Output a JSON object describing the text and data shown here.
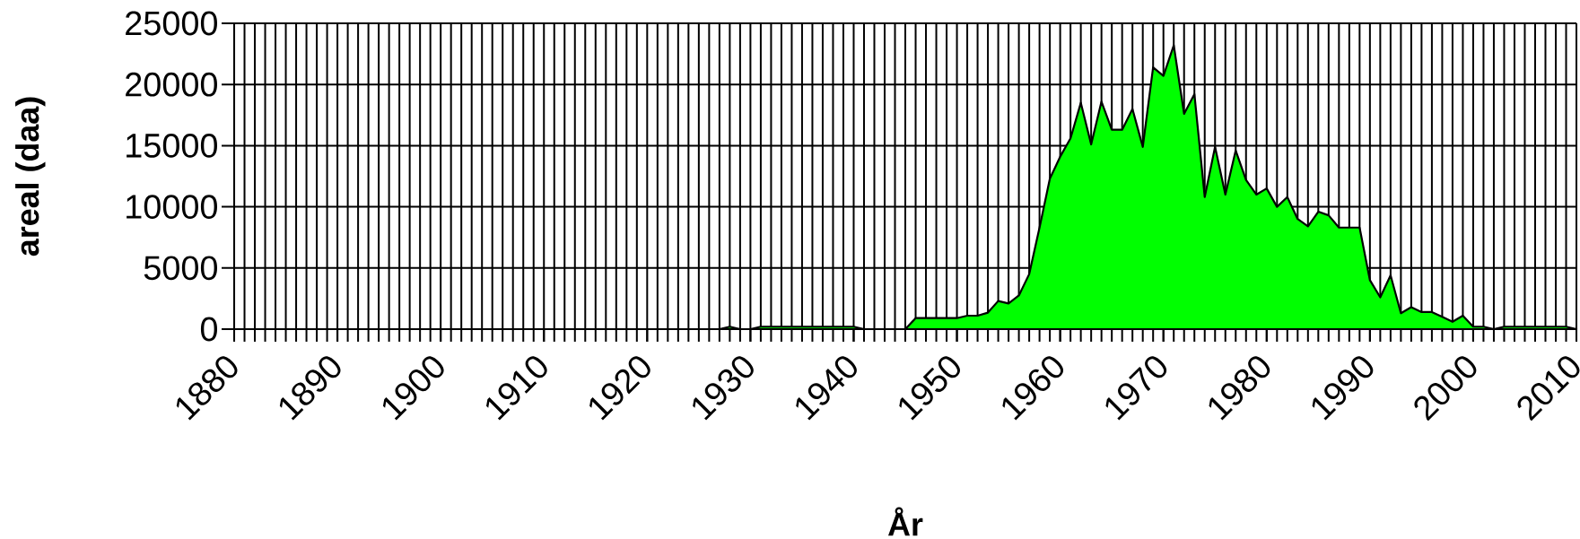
{
  "chart_data": {
    "type": "area",
    "xlabel": "År",
    "ylabel": "areal (daa)",
    "color": "#00ff00",
    "x": [
      1880,
      1881,
      1882,
      1883,
      1884,
      1885,
      1886,
      1887,
      1888,
      1889,
      1890,
      1891,
      1892,
      1893,
      1894,
      1895,
      1896,
      1897,
      1898,
      1899,
      1900,
      1901,
      1902,
      1903,
      1904,
      1905,
      1906,
      1907,
      1908,
      1909,
      1910,
      1911,
      1912,
      1913,
      1914,
      1915,
      1916,
      1917,
      1918,
      1919,
      1920,
      1921,
      1922,
      1923,
      1924,
      1925,
      1926,
      1927,
      1928,
      1929,
      1930,
      1931,
      1932,
      1933,
      1934,
      1935,
      1936,
      1937,
      1938,
      1939,
      1940,
      1941,
      1942,
      1943,
      1944,
      1945,
      1946,
      1947,
      1948,
      1949,
      1950,
      1951,
      1952,
      1953,
      1954,
      1955,
      1956,
      1957,
      1958,
      1959,
      1960,
      1961,
      1962,
      1963,
      1964,
      1965,
      1966,
      1967,
      1968,
      1969,
      1970,
      1971,
      1972,
      1973,
      1974,
      1975,
      1976,
      1977,
      1978,
      1979,
      1980,
      1981,
      1982,
      1983,
      1984,
      1985,
      1986,
      1987,
      1988,
      1989,
      1990,
      1991,
      1992,
      1993,
      1994,
      1995,
      1996,
      1997,
      1998,
      1999,
      2000,
      2001,
      2002,
      2003,
      2004,
      2005,
      2006,
      2007,
      2008,
      2009,
      2010
    ],
    "values": [
      0,
      0,
      0,
      0,
      0,
      0,
      0,
      0,
      0,
      0,
      0,
      0,
      0,
      0,
      0,
      0,
      0,
      0,
      0,
      0,
      0,
      0,
      0,
      0,
      0,
      0,
      0,
      0,
      0,
      0,
      0,
      0,
      0,
      0,
      0,
      0,
      0,
      0,
      0,
      0,
      0,
      0,
      0,
      0,
      0,
      0,
      0,
      0,
      200,
      0,
      0,
      200,
      200,
      200,
      200,
      200,
      200,
      200,
      200,
      200,
      200,
      0,
      0,
      0,
      0,
      0,
      900,
      900,
      900,
      900,
      900,
      1100,
      1100,
      1350,
      2300,
      2100,
      2750,
      4500,
      8300,
      12300,
      14100,
      15600,
      18500,
      15100,
      18600,
      16300,
      16300,
      18000,
      14900,
      21400,
      20700,
      23200,
      17600,
      19200,
      10800,
      14900,
      11000,
      14600,
      12200,
      11000,
      11500,
      10000,
      10800,
      9000,
      8400,
      9600,
      9300,
      8300,
      8300,
      8300,
      4000,
      2600,
      4400,
      1300,
      1800,
      1400,
      1400,
      1000,
      600,
      1100,
      200,
      200,
      0,
      200,
      200,
      200,
      200,
      200,
      200,
      200,
      0
    ],
    "xlim": [
      1880,
      2010
    ],
    "xticks": [
      1880,
      1890,
      1900,
      1910,
      1920,
      1930,
      1940,
      1950,
      1960,
      1970,
      1980,
      1990,
      2000,
      2010
    ],
    "ylim": [
      0,
      25000
    ],
    "yticks": [
      0,
      5000,
      10000,
      15000,
      20000,
      25000
    ],
    "grid": true
  }
}
